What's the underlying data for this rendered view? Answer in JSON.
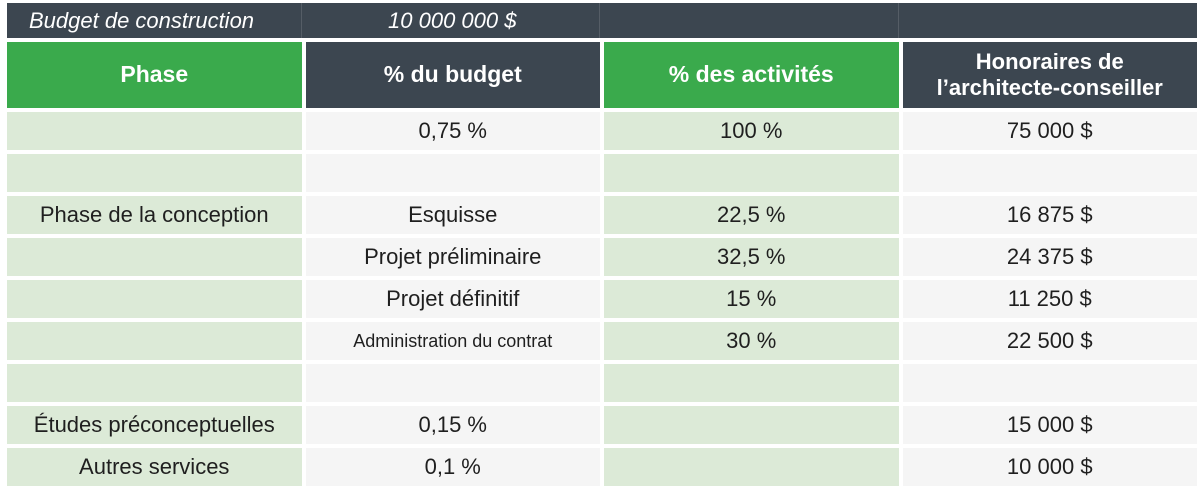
{
  "banner": {
    "label": "Budget de construction",
    "value": "10 000 000 $"
  },
  "header": {
    "columns": [
      "Phase",
      "% du budget",
      "% des activités",
      "Honoraires de l’architecte-conseiller"
    ]
  },
  "rows": [
    {
      "cells": [
        "",
        "0,75 %",
        "100 %",
        "75 000 $"
      ]
    },
    {
      "cells": [
        "",
        "",
        "",
        ""
      ]
    },
    {
      "cells": [
        "Phase de la conception",
        "Esquisse",
        "22,5 %",
        "16 875 $"
      ]
    },
    {
      "cells": [
        "",
        "Projet préliminaire",
        "32,5 %",
        "24 375 $"
      ]
    },
    {
      "cells": [
        "",
        "Projet définitif",
        "15 %",
        "11 250 $"
      ]
    },
    {
      "cells": [
        "",
        "Administration du contrat",
        "30 %",
        "22 500 $"
      ]
    },
    {
      "cells": [
        "",
        "",
        "",
        ""
      ]
    },
    {
      "cells": [
        "Études préconceptuelles",
        "0,15 %",
        "",
        "15 000 $"
      ]
    },
    {
      "cells": [
        "Autres services",
        "0,1 %",
        "",
        "10 000 $"
      ]
    }
  ],
  "colors": {
    "dark": "#3c4650",
    "green": "#3aaa4c",
    "lightGreen": "#dcead7",
    "lightGray": "#f5f5f5",
    "textDark": "#1f1f1f",
    "white": "#ffffff"
  }
}
